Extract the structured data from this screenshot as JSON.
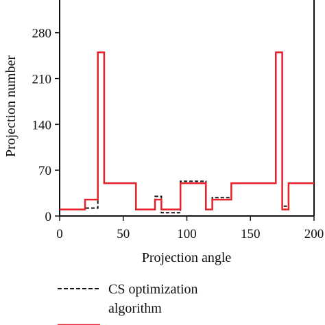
{
  "chart_data": {
    "type": "line",
    "xlabel": "Projection angle",
    "ylabel": "Projection number",
    "xlim": [
      0,
      200
    ],
    "ylim": [
      0,
      330
    ],
    "x_ticks": [
      0,
      50,
      100,
      150,
      200
    ],
    "x_tick_labels": [
      "0",
      "50",
      "100",
      "150",
      "200"
    ],
    "y_ticks": [
      0,
      70,
      140,
      210,
      280
    ],
    "y_tick_labels": [
      "0",
      "70",
      "140",
      "210",
      "280"
    ],
    "grid": false,
    "legend_placement": "bottom",
    "series": [
      {
        "name": "CS optimization algorithm",
        "color": "#111111",
        "dash": "dashed",
        "x": [
          0,
          20,
          20,
          30,
          30,
          35,
          35,
          60,
          60,
          75,
          75,
          80,
          80,
          95,
          95,
          115,
          115,
          120,
          120,
          135,
          135,
          170,
          170,
          175,
          175,
          180,
          180,
          200
        ],
        "y": [
          10,
          10,
          12,
          12,
          250,
          250,
          50,
          50,
          10,
          10,
          30,
          30,
          5,
          5,
          53,
          53,
          10,
          10,
          28,
          28,
          50,
          50,
          250,
          250,
          15,
          15,
          50,
          50
        ]
      },
      {
        "name": "",
        "color": "#e8202a",
        "dash": "solid",
        "x": [
          0,
          20,
          20,
          30,
          30,
          35,
          35,
          60,
          60,
          75,
          75,
          80,
          80,
          95,
          95,
          115,
          115,
          120,
          120,
          135,
          135,
          170,
          170,
          175,
          175,
          180,
          180,
          200
        ],
        "y": [
          10,
          10,
          25,
          25,
          250,
          250,
          50,
          50,
          10,
          10,
          25,
          25,
          10,
          10,
          50,
          50,
          10,
          10,
          25,
          25,
          50,
          50,
          250,
          250,
          10,
          10,
          50,
          50
        ]
      }
    ],
    "legend": [
      {
        "line1": "CS optimization",
        "line2": "algorithm"
      }
    ]
  }
}
